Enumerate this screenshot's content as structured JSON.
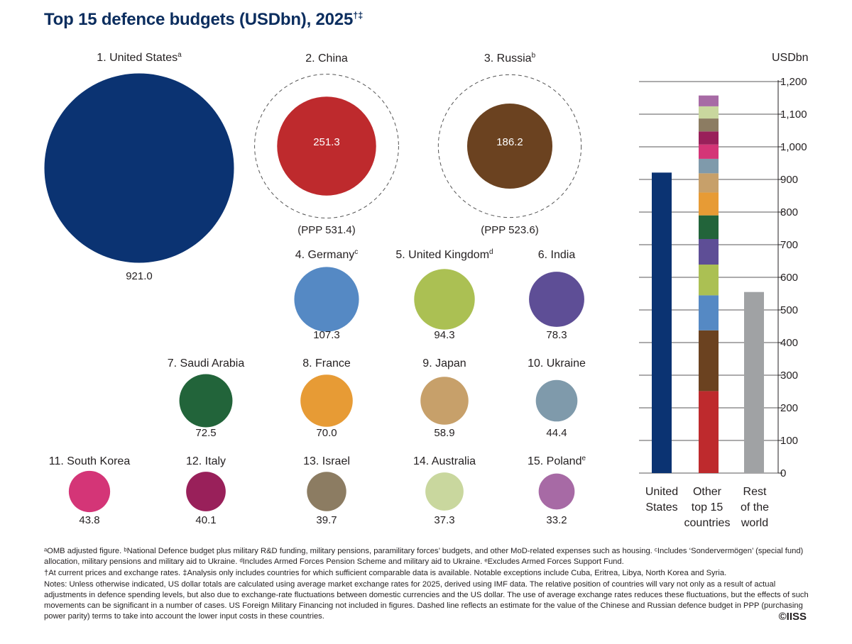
{
  "title": "Top 15 defence budgets (USDbn), 2025",
  "title_marks": "†‡",
  "colors": {
    "United States": "#0b3372",
    "China": "#be2a2d",
    "Russia": "#6b4220",
    "Germany": "#5589c4",
    "United Kingdom": "#abc053",
    "India": "#5e4e96",
    "Saudi Arabia": "#22643a",
    "France": "#e79b35",
    "Japan": "#c7a06a",
    "Ukraine": "#7f9aab",
    "South Korea": "#d43577",
    "Italy": "#99205a",
    "Israel": "#8c7c62",
    "Australia": "#c9d79e",
    "Poland": "#a76aa5",
    "Rest of the world": "#a0a2a4"
  },
  "chart_data": [
    {
      "type": "bubble",
      "countries": [
        {
          "rank": "1.",
          "name": "United States",
          "note": "a",
          "value": 921.0,
          "label": "921.0"
        },
        {
          "rank": "2.",
          "name": "China",
          "note": "",
          "value": 251.3,
          "label": "251.3",
          "ppp": 531.4,
          "ppp_label": "(PPP 531.4)"
        },
        {
          "rank": "3.",
          "name": "Russia",
          "note": "b",
          "value": 186.2,
          "label": "186.2",
          "ppp": 523.6,
          "ppp_label": "(PPP 523.6)"
        },
        {
          "rank": "4.",
          "name": "Germany",
          "note": "c",
          "value": 107.3,
          "label": "107.3"
        },
        {
          "rank": "5.",
          "name": "United Kingdom",
          "note": "d",
          "value": 94.3,
          "label": "94.3"
        },
        {
          "rank": "6.",
          "name": "India",
          "note": "",
          "value": 78.3,
          "label": "78.3"
        },
        {
          "rank": "7.",
          "name": "Saudi Arabia",
          "note": "",
          "value": 72.5,
          "label": "72.5"
        },
        {
          "rank": "8.",
          "name": "France",
          "note": "",
          "value": 70.0,
          "label": "70.0"
        },
        {
          "rank": "9.",
          "name": "Japan",
          "note": "",
          "value": 58.9,
          "label": "58.9"
        },
        {
          "rank": "10.",
          "name": "Ukraine",
          "note": "",
          "value": 44.4,
          "label": "44.4"
        },
        {
          "rank": "11.",
          "name": "South Korea",
          "note": "",
          "value": 43.8,
          "label": "43.8"
        },
        {
          "rank": "12.",
          "name": "Italy",
          "note": "",
          "value": 40.1,
          "label": "40.1"
        },
        {
          "rank": "13.",
          "name": "Israel",
          "note": "",
          "value": 39.7,
          "label": "39.7"
        },
        {
          "rank": "14.",
          "name": "Australia",
          "note": "",
          "value": 37.3,
          "label": "37.3"
        },
        {
          "rank": "15.",
          "name": "Poland",
          "note": "e",
          "value": 33.2,
          "label": "33.2"
        }
      ]
    },
    {
      "type": "bar",
      "stacked": true,
      "ylabel": "USDbn",
      "ylim": [
        0,
        1200
      ],
      "yticks": [
        0,
        100,
        200,
        300,
        400,
        500,
        600,
        700,
        800,
        900,
        1000,
        1100,
        1200
      ],
      "ytick_labels": [
        "0",
        "100",
        "200",
        "300",
        "400",
        "500",
        "600",
        "700",
        "800",
        "900",
        "1,000",
        "1,100",
        "1,200"
      ],
      "categories": [
        {
          "lines": [
            "United",
            "States"
          ],
          "segments": [
            {
              "name": "United States",
              "value": 921.0
            }
          ]
        },
        {
          "lines": [
            "Other",
            "top 15",
            "countries"
          ],
          "segments": [
            {
              "name": "China",
              "value": 251.3
            },
            {
              "name": "Russia",
              "value": 186.2
            },
            {
              "name": "Germany",
              "value": 107.3
            },
            {
              "name": "United Kingdom",
              "value": 94.3
            },
            {
              "name": "India",
              "value": 78.3
            },
            {
              "name": "Saudi Arabia",
              "value": 72.5
            },
            {
              "name": "France",
              "value": 70.0
            },
            {
              "name": "Japan",
              "value": 58.9
            },
            {
              "name": "Ukraine",
              "value": 44.4
            },
            {
              "name": "South Korea",
              "value": 43.8
            },
            {
              "name": "Italy",
              "value": 40.1
            },
            {
              "name": "Israel",
              "value": 39.7
            },
            {
              "name": "Australia",
              "value": 37.3
            },
            {
              "name": "Poland",
              "value": 33.2
            }
          ]
        },
        {
          "lines": [
            "Rest",
            "of the",
            "world"
          ],
          "segments": [
            {
              "name": "Rest of the world",
              "value": 555
            }
          ]
        }
      ]
    }
  ],
  "notes": {
    "footnotes_1": "ᵃOMB adjusted figure. ᵇNational Defence budget plus military R&D funding, military pensions, paramilitary forces’ budgets, and other MoD-related expenses such as housing. ᶜIncludes ‘Sondervermögen’ (special fund) allocation, military pensions and military aid to Ukraine. ᵈIncludes Armed Forces Pension Scheme and military aid to Ukraine. ᵉExcludes Armed Forces Support Fund.",
    "footnotes_2": "†At current prices and exchange rates. ‡Analysis only includes countries for which sufficient comparable data is available. Notable exceptions include Cuba, Eritrea, Libya, North Korea and Syria.",
    "notes": "Notes: Unless otherwise indicated, US dollar totals are calculated using average market exchange rates for 2025, derived using IMF data. The relative position of countries will vary not only as a result of actual adjustments in defence spending levels, but also due to exchange-rate fluctuations between domestic currencies and the US dollar. The use of average exchange rates reduces these fluctuations, but the effects of such movements can be significant in a number of cases. US Foreign Military Financing not included in figures. Dashed line reflects an estimate for the value of the Chinese and Russian defence budget in PPP (purchasing power parity) terms to take into account the lower input costs in these countries."
  },
  "copyright": "©IISS"
}
